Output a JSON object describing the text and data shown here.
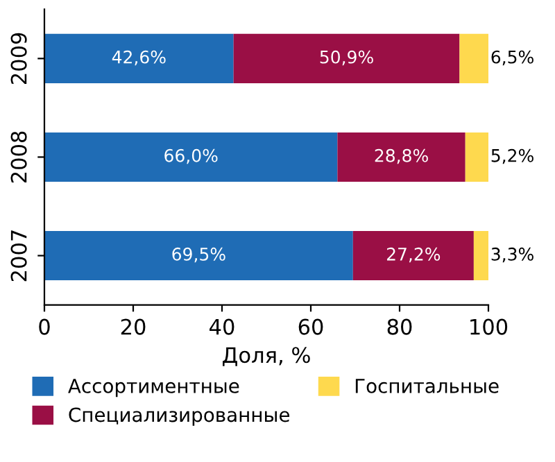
{
  "chart_data": {
    "type": "bar",
    "orientation": "horizontal",
    "stacked": true,
    "categories": [
      "2009",
      "2008",
      "2007"
    ],
    "series": [
      {
        "name": "Ассортиментные",
        "color": "#1f6cb5",
        "values": [
          42.6,
          66.0,
          69.5
        ],
        "value_labels": [
          "42,6%",
          "66,0%",
          "69,5%"
        ]
      },
      {
        "name": "Специализированные",
        "color": "#9a0f45",
        "values": [
          50.9,
          28.8,
          27.2
        ],
        "value_labels": [
          "50,9%",
          "28,8%",
          "27,2%"
        ]
      },
      {
        "name": "Госпитальные",
        "color": "#fed94e",
        "values": [
          6.5,
          5.2,
          3.3
        ],
        "value_labels": [
          "6,5%",
          "5,2%",
          "3,3%"
        ]
      }
    ],
    "xlim": [
      0,
      100
    ],
    "xticks": [
      0,
      20,
      40,
      60,
      80,
      100
    ],
    "xlabel": "Доля, %",
    "legend": "bottom",
    "grid": false
  }
}
